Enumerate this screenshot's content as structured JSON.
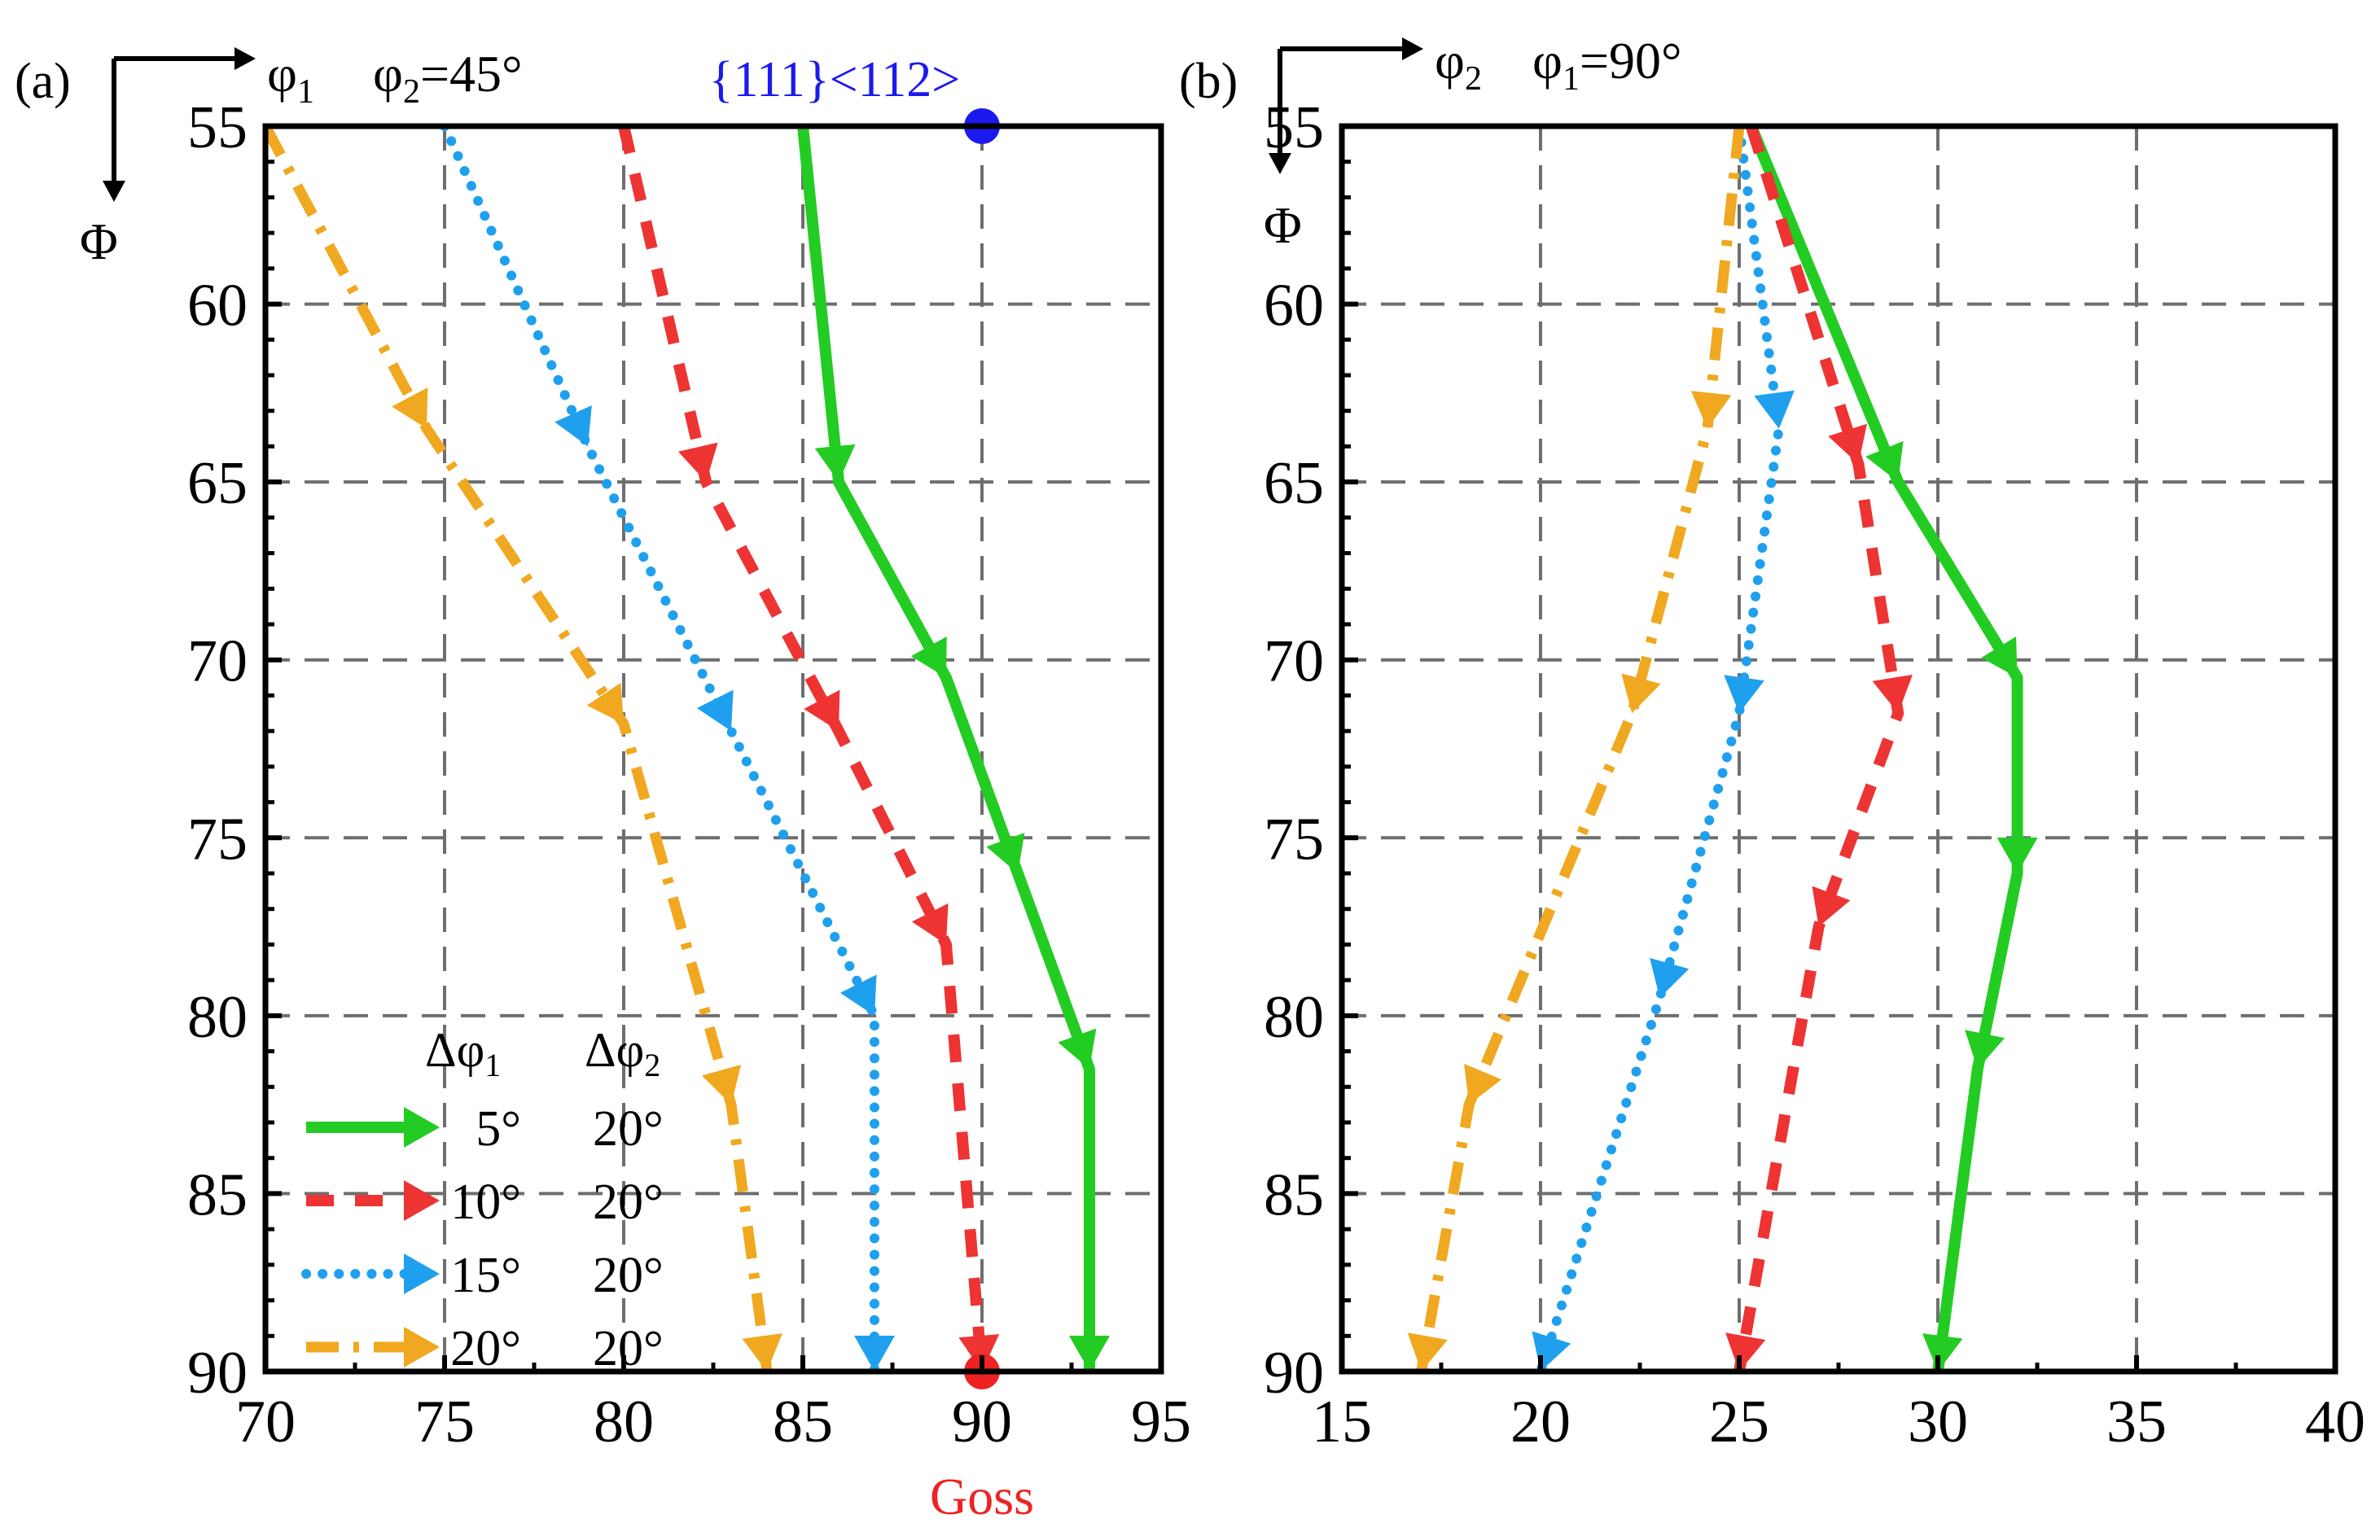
{
  "figure": {
    "panels": [
      {
        "id": "a",
        "label": "(a)",
        "x_symbol": "φ",
        "x_subscript": "1",
        "fixed_symbol": "φ",
        "fixed_subscript": "2",
        "fixed_value": "=45°",
        "y_symbol": "Φ",
        "top_annotation": "{111}<112>",
        "bottom_annotation": "Goss"
      },
      {
        "id": "b",
        "label": "(b)",
        "x_symbol": "φ",
        "x_subscript": "2",
        "fixed_symbol": "φ",
        "fixed_subscript": "1",
        "fixed_value": "=90°",
        "y_symbol": "Φ"
      }
    ],
    "legend": {
      "header_col1_symbol": "Δφ",
      "header_col1_sub": "1",
      "header_col2_symbol": "Δφ",
      "header_col2_sub": "2",
      "rows": [
        {
          "d1": "5°",
          "d2": "20°"
        },
        {
          "d1": "10°",
          "d2": "20°"
        },
        {
          "d1": "15°",
          "d2": "20°"
        },
        {
          "d1": "20°",
          "d2": "20°"
        }
      ]
    }
  },
  "chart_data": [
    {
      "type": "line",
      "title": "(a) φ1 φ2=45°",
      "xlabel": "φ1",
      "ylabel": "Φ",
      "xlim": [
        70,
        95
      ],
      "ylim": [
        55,
        90
      ],
      "y_inverted": true,
      "x_axis_position": "top arrow label, ticks at bottom",
      "xticks": [
        70,
        75,
        80,
        85,
        90,
        95
      ],
      "yticks": [
        55,
        60,
        65,
        70,
        75,
        80,
        85,
        90
      ],
      "grid": true,
      "series": [
        {
          "name": "Δφ1 5° Δφ2 20°",
          "color": "#22cc22",
          "style": "solid",
          "points": [
            [
              85,
              55
            ],
            [
              86,
              65
            ],
            [
              89,
              70.5
            ],
            [
              91,
              76
            ],
            [
              93,
              81.5
            ],
            [
              93,
              90
            ]
          ]
        },
        {
          "name": "Δφ1 10° Δφ2 20°",
          "color": "#ee3333",
          "style": "dash",
          "points": [
            [
              80,
              55
            ],
            [
              82.3,
              65
            ],
            [
              86,
              72
            ],
            [
              89,
              78
            ],
            [
              90,
              90
            ]
          ]
        },
        {
          "name": "Δφ1 15° Δφ2 20°",
          "color": "#1ea0ee",
          "style": "dot",
          "points": [
            [
              75,
              55
            ],
            [
              79,
              64
            ],
            [
              83,
              72
            ],
            [
              87,
              80
            ],
            [
              87,
              90
            ]
          ]
        },
        {
          "name": "Δφ1 20° Δφ2 20°",
          "color": "#f0a820",
          "style": "dashdot",
          "points": [
            [
              70,
              55
            ],
            [
              74.5,
              63.5
            ],
            [
              80,
              71.8
            ],
            [
              83,
              82.5
            ],
            [
              84,
              90
            ]
          ]
        }
      ],
      "markers": [
        {
          "label": "{111}<112>",
          "x": 90,
          "y": 55,
          "color": "#1a1aee"
        },
        {
          "label": "Goss",
          "x": 90,
          "y": 90,
          "color": "#ee2222"
        }
      ]
    },
    {
      "type": "line",
      "title": "(b) φ2 φ1=90°",
      "xlabel": "φ2",
      "ylabel": "Φ",
      "xlim": [
        15,
        40
      ],
      "ylim": [
        55,
        90
      ],
      "y_inverted": true,
      "xticks": [
        15,
        20,
        25,
        30,
        35,
        40
      ],
      "yticks": [
        55,
        60,
        65,
        70,
        75,
        80,
        85,
        90
      ],
      "grid": true,
      "series": [
        {
          "name": "Δφ1 5° Δφ2 20°",
          "color": "#22cc22",
          "style": "solid",
          "points": [
            [
              25.3,
              55
            ],
            [
              29,
              65
            ],
            [
              32,
              70.5
            ],
            [
              32,
              76
            ],
            [
              31,
              81.5
            ],
            [
              30,
              90
            ]
          ]
        },
        {
          "name": "Δφ1 10° Δφ2 20°",
          "color": "#ee3333",
          "style": "dash",
          "points": [
            [
              25.3,
              55
            ],
            [
              28,
              64.5
            ],
            [
              29,
              71.5
            ],
            [
              27,
              77.5
            ],
            [
              25,
              90
            ]
          ]
        },
        {
          "name": "Δφ1 15° Δφ2 20°",
          "color": "#1ea0ee",
          "style": "dot",
          "points": [
            [
              25,
              55
            ],
            [
              26,
              63.5
            ],
            [
              25,
              71.5
            ],
            [
              23,
              79.5
            ],
            [
              20,
              90
            ]
          ]
        },
        {
          "name": "Δφ1 20° Δφ2 20°",
          "color": "#f0a820",
          "style": "dashdot",
          "points": [
            [
              25,
              55
            ],
            [
              24.2,
              63.5
            ],
            [
              22.3,
              71.5
            ],
            [
              18.2,
              82.5
            ],
            [
              17,
              90
            ]
          ]
        }
      ]
    }
  ]
}
